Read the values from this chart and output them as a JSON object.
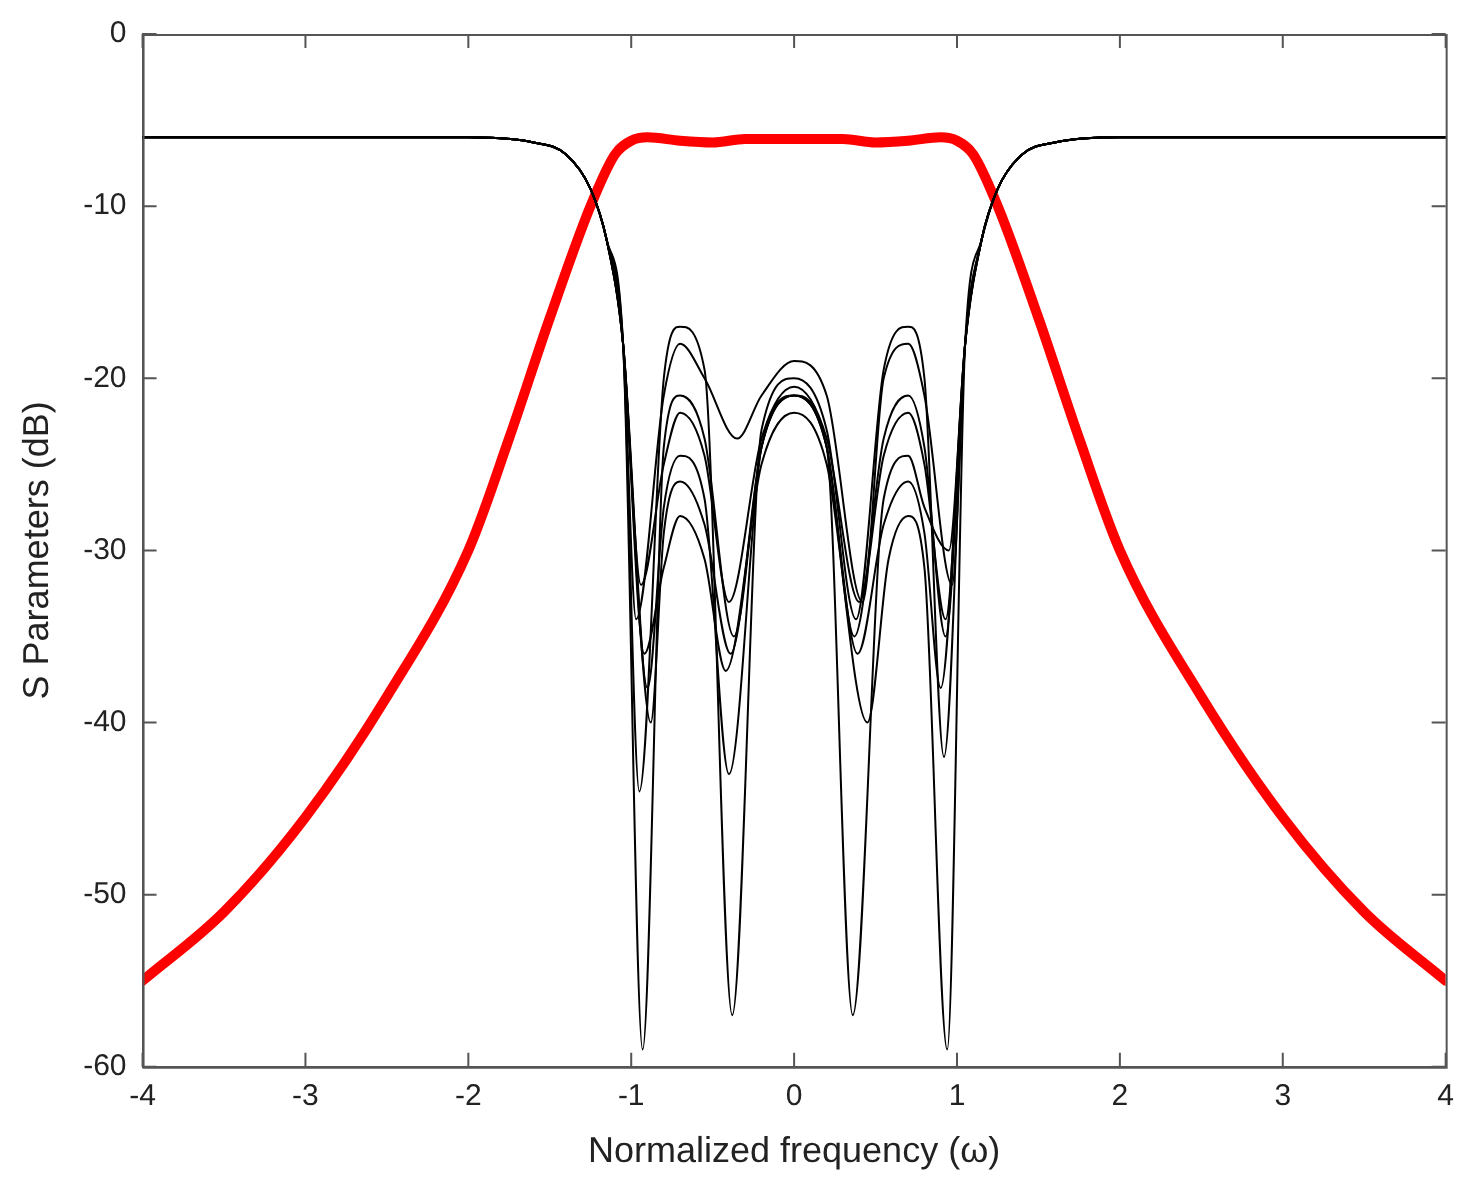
{
  "chart_data": {
    "type": "line",
    "xlabel": "Normalized frequency (ω)",
    "ylabel": "S Parameters (dB)",
    "xlim": [
      -4,
      4
    ],
    "xticks": [
      -4,
      -3,
      -2,
      -1,
      0,
      1,
      2,
      3,
      4
    ],
    "ylim": [
      -60,
      0
    ],
    "yticks": [
      -60,
      -50,
      -40,
      -30,
      -20,
      -10,
      0
    ],
    "grid": false,
    "legend": false,
    "marker": "none",
    "line_style": "solid",
    "series": [
      {
        "color": "#000000",
        "x": [
          -4,
          -2,
          -1.6,
          -1.4,
          -1.25,
          -1.15,
          -1.05,
          -0.93,
          -0.8,
          -0.7,
          -0.55,
          -0.37,
          -0.2,
          0,
          0.2,
          0.37,
          0.55,
          0.7,
          0.8,
          0.93,
          1.05,
          1.15,
          1.25,
          1.4,
          1.6,
          2,
          4
        ],
        "values": [
          -6,
          -6,
          -6.3,
          -7,
          -9,
          -12,
          -18,
          -59,
          -24,
          -21,
          -23.5,
          -35,
          -24,
          -21,
          -24,
          -35,
          -23.5,
          -21,
          -24,
          -35,
          -18,
          -12,
          -9,
          -7,
          -6.3,
          -6,
          -6
        ]
      },
      {
        "color": "#000000",
        "x": [
          -4,
          -2,
          -1.6,
          -1.4,
          -1.25,
          -1.15,
          -1.05,
          -0.95,
          -0.8,
          -0.7,
          -0.55,
          -0.38,
          -0.2,
          0,
          0.2,
          0.38,
          0.55,
          0.7,
          0.8,
          0.92,
          1.05,
          1.15,
          1.25,
          1.4,
          1.6,
          2,
          4
        ],
        "values": [
          -6,
          -6,
          -6.3,
          -7,
          -9,
          -12,
          -18,
          -44,
          -20,
          -17,
          -19.5,
          -57,
          -23,
          -20,
          -23,
          -34,
          -19.5,
          -17,
          -20,
          -42,
          -18,
          -12,
          -9,
          -7,
          -6.3,
          -6,
          -6
        ]
      },
      {
        "color": "#000000",
        "x": [
          -4,
          -2,
          -1.6,
          -1.4,
          -1.25,
          -1.15,
          -1.05,
          -0.9,
          -0.8,
          -0.7,
          -0.55,
          -0.4,
          -0.2,
          0,
          0.2,
          0.36,
          0.55,
          0.7,
          0.8,
          0.95,
          1.05,
          1.15,
          1.25,
          1.4,
          1.6,
          2,
          4
        ],
        "values": [
          -6,
          -6,
          -6.3,
          -7,
          -9,
          -12,
          -18,
          -38,
          -27.5,
          -24.5,
          -27,
          -43,
          -24,
          -21,
          -24,
          -57,
          -27,
          -24.5,
          -27.5,
          -30,
          -18,
          -12,
          -9,
          -7,
          -6.3,
          -6,
          -6
        ]
      },
      {
        "color": "#000000",
        "x": [
          -4,
          -2,
          -1.6,
          -1.4,
          -1.25,
          -1.15,
          -1.05,
          -0.92,
          -0.8,
          -0.7,
          -0.55,
          -0.42,
          -0.2,
          0,
          0.2,
          0.45,
          0.58,
          0.7,
          0.8,
          0.94,
          1.05,
          1.15,
          1.25,
          1.4,
          1.6,
          2,
          4
        ],
        "values": [
          -6,
          -6,
          -6.3,
          -7,
          -9,
          -12,
          -18,
          -36,
          -31,
          -28,
          -30.5,
          -37,
          -25,
          -22,
          -25,
          -40,
          -30.5,
          -28,
          -31,
          -59,
          -18,
          -12,
          -9,
          -7,
          -6.3,
          -6,
          -6
        ]
      },
      {
        "color": "#000000",
        "x": [
          -4,
          -2,
          -1.6,
          -1.4,
          -1.25,
          -1.15,
          -1.05,
          -0.97,
          -0.8,
          -0.7,
          -0.55,
          -0.35,
          -0.2,
          0,
          0.2,
          0.42,
          0.55,
          0.7,
          0.8,
          0.97,
          1.05,
          1.15,
          1.25,
          1.4,
          1.6,
          2,
          4
        ],
        "values": [
          -6,
          -6,
          -6.3,
          -7,
          -9,
          -12,
          -18,
          -34,
          -21,
          -18,
          -20,
          -23.5,
          -21,
          -19,
          -21,
          -33,
          -20,
          -18,
          -21,
          -32,
          -18,
          -12,
          -9,
          -7,
          -6.3,
          -6,
          -6
        ]
      },
      {
        "color": "#000000",
        "x": [
          -4,
          -2,
          -1.6,
          -1.4,
          -1.25,
          -1.15,
          -1.05,
          -0.88,
          -0.8,
          -0.7,
          -0.55,
          -0.39,
          -0.2,
          0,
          0.2,
          0.39,
          0.55,
          0.7,
          0.8,
          0.9,
          1.05,
          1.15,
          1.25,
          1.4,
          1.6,
          2,
          4
        ],
        "values": [
          -6,
          -6,
          -6.3,
          -7,
          -9,
          -12,
          -18,
          -40,
          -29,
          -26,
          -28.5,
          -36,
          -24,
          -21,
          -24,
          -36,
          -28.5,
          -26,
          -29,
          -38,
          -18,
          -12,
          -9,
          -7,
          -6.3,
          -6,
          -6
        ]
      },
      {
        "color": "#000000",
        "x": [
          -4,
          -2,
          -1.6,
          -1.4,
          -1.25,
          -1.15,
          -1.05,
          -0.94,
          -0.8,
          -0.7,
          -0.55,
          -0.4,
          -0.2,
          0,
          0.2,
          0.4,
          0.55,
          0.7,
          0.8,
          0.93,
          1.05,
          1.15,
          1.25,
          1.4,
          1.6,
          2,
          4
        ],
        "values": [
          -6,
          -6,
          -6.3,
          -7,
          -9,
          -12,
          -18,
          -32,
          -25,
          -22,
          -24.5,
          -33,
          -23.5,
          -20.5,
          -23.5,
          -33,
          -24.5,
          -22,
          -25,
          -34,
          -18,
          -12,
          -9,
          -7,
          -6.3,
          -6,
          -6
        ]
      },
      {
        "color": "#ff0000",
        "x": [
          -4,
          -3.5,
          -3,
          -2.5,
          -2,
          -1.75,
          -1.5,
          -1.25,
          -1.1,
          -1,
          -0.9,
          -0.7,
          -0.5,
          -0.3,
          0,
          0.3,
          0.5,
          0.7,
          0.9,
          1,
          1.1,
          1.25,
          1.5,
          1.75,
          2,
          2.5,
          3,
          3.5,
          4
        ],
        "values": [
          -55,
          -51,
          -45.5,
          -38.5,
          -30,
          -23.5,
          -16.5,
          -10,
          -7,
          -6.2,
          -6,
          -6.2,
          -6.3,
          -6.1,
          -6.1,
          -6.1,
          -6.3,
          -6.2,
          -6,
          -6.2,
          -7,
          -10,
          -16.5,
          -23.5,
          -30,
          -38.5,
          -45.5,
          -51,
          -55
        ]
      }
    ]
  }
}
